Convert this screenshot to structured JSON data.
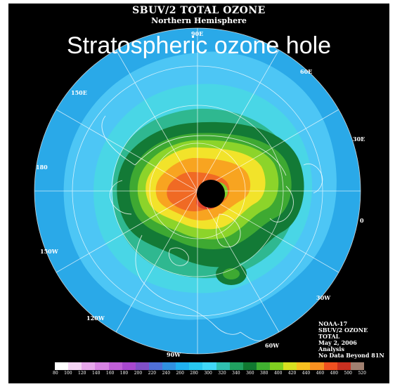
{
  "header": {
    "title": "SBUV/2 TOTAL OZONE",
    "subtitle": "Northern Hemisphere"
  },
  "overlay_caption": "Stratospheric ozone hole",
  "longitude_labels": {
    "lon_90e": "90E",
    "lon_60e": "60E",
    "lon_30e": "30E",
    "lon_0": "0",
    "lon_30w": "30W",
    "lon_60w": "60W",
    "lon_90w": "90W",
    "lon_120w": "120W",
    "lon_150w": "150W",
    "lon_180": "180",
    "lon_150e": "150E"
  },
  "info": {
    "satellite": "NOAA-17",
    "product": "SBUV/2 OZONE",
    "type": "TOTAL",
    "date": "May 2, 2006",
    "analysis": "Analysis",
    "note": "No Data Beyond 81N"
  },
  "color_scale": {
    "labels": [
      "80",
      "100",
      "120",
      "140",
      "160",
      "180",
      "200",
      "220",
      "240",
      "260",
      "280",
      "300",
      "320",
      "340",
      "360",
      "380",
      "400",
      "420",
      "440",
      "460",
      "480",
      "500",
      "520"
    ],
    "colors": [
      "#ffffff",
      "#f4d4f4",
      "#e8a8ec",
      "#d884e4",
      "#c060d8",
      "#a848d0",
      "#8050c8",
      "#5070d8",
      "#3090e0",
      "#20b0f0",
      "#28c8f0",
      "#40d8f8",
      "#30c0b0",
      "#20a060",
      "#107830",
      "#40b030",
      "#80d020",
      "#d8e020",
      "#f8c020",
      "#f89020",
      "#f05020",
      "#c83020",
      "#a08070"
    ]
  }
}
